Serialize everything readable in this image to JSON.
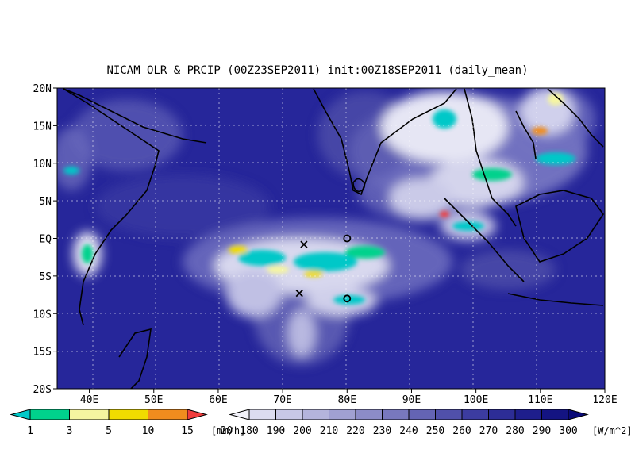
{
  "title": "NICAM OLR & PRCIP (00Z23SEP2011) init:00Z18SEP2011 (daily_mean)",
  "map": {
    "lon_range": [
      35,
      120
    ],
    "lat_range": [
      -20,
      20
    ],
    "lon_ticks": [
      "40E",
      "50E",
      "60E",
      "70E",
      "80E",
      "90E",
      "100E",
      "110E",
      "120E"
    ],
    "lat_ticks": [
      "20N",
      "15N",
      "10N",
      "5N",
      "EQ",
      "5S",
      "10S",
      "15S",
      "20S"
    ],
    "grid": "dotted",
    "markers": [
      {
        "type": "cross",
        "lon": 73.3,
        "lat": -0.8
      },
      {
        "type": "cross",
        "lon": 72.6,
        "lat": -7.3
      },
      {
        "type": "circle",
        "lon": 80.0,
        "lat": 0.0
      },
      {
        "type": "circle",
        "lon": 80.0,
        "lat": -8.0
      }
    ]
  },
  "precip_legend": {
    "labels": [
      "1",
      "3",
      "5",
      "10",
      "15",
      "20"
    ],
    "unit": "[mm/h]",
    "colors": [
      "#00c8c8",
      "#00d28c",
      "#f5f5a0",
      "#f0dc00",
      "#f08c1e",
      "#f03c3c"
    ]
  },
  "olr_legend": {
    "labels": [
      "180",
      "190",
      "200",
      "210",
      "220",
      "230",
      "240",
      "250",
      "260",
      "270",
      "280",
      "290",
      "300"
    ],
    "unit": "[W/m^2]",
    "colors": [
      "#f2f2fa",
      "#dcdcf0",
      "#c8c8e6",
      "#b4b4dc",
      "#a0a0d2",
      "#8c8cc8",
      "#7878be",
      "#6464b4",
      "#5050aa",
      "#3c3ca0",
      "#2d2d96",
      "#1e1e8c",
      "#141482",
      "#0a0a78"
    ]
  }
}
